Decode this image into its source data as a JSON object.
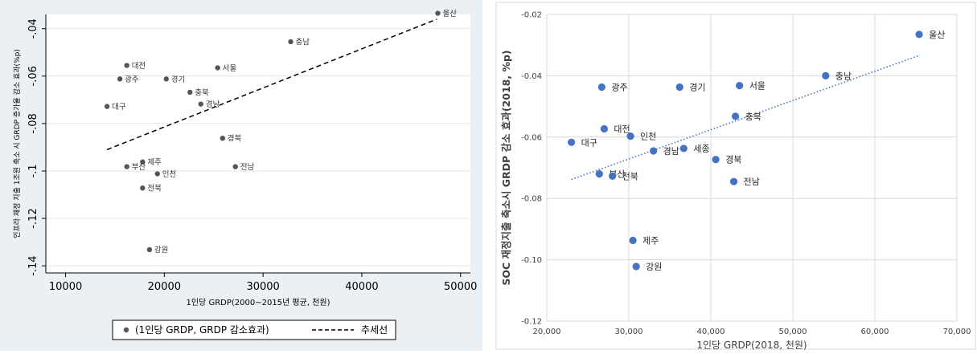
{
  "chart_data": [
    {
      "type": "scatter",
      "panel": "left",
      "xlabel": "1인당 GRDP(2000~2015년 평균, 천원)",
      "ylabel": "인프라 재정 지출 1조원 축소 시 GRDP 증가율 감소 효과(%p)",
      "xlim": [
        8000,
        51000
      ],
      "ylim": [
        -0.143,
        -0.034
      ],
      "xticks": [
        10000,
        20000,
        30000,
        40000,
        50000
      ],
      "yticks": [
        -0.04,
        -0.06,
        -0.08,
        -0.1,
        -0.12,
        -0.14
      ],
      "ytick_labels": [
        "-.04",
        "-.06",
        "-.08",
        "-.1",
        "-.12",
        "-.14"
      ],
      "grid": true,
      "legend": {
        "position": "bottom",
        "items": [
          "(1인당 GRDP, GRDP 감소효과)",
          "추세선"
        ]
      },
      "marker_color": "#555555",
      "trend": {
        "label": "추세선",
        "style": "dashed",
        "x": [
          14200,
          47600
        ],
        "y": [
          -0.091,
          -0.036
        ]
      },
      "points": [
        {
          "label": "울산",
          "x": 47700,
          "y": -0.0335
        },
        {
          "label": "충남",
          "x": 32800,
          "y": -0.0455
        },
        {
          "label": "대전",
          "x": 16200,
          "y": -0.0555
        },
        {
          "label": "광주",
          "x": 15500,
          "y": -0.0612
        },
        {
          "label": "경기",
          "x": 20200,
          "y": -0.0612
        },
        {
          "label": "서울",
          "x": 25400,
          "y": -0.0565
        },
        {
          "label": "충북",
          "x": 22600,
          "y": -0.0668
        },
        {
          "label": "경남",
          "x": 23700,
          "y": -0.0718
        },
        {
          "label": "대구",
          "x": 14200,
          "y": -0.0728
        },
        {
          "label": "경북",
          "x": 25900,
          "y": -0.0862
        },
        {
          "label": "제주",
          "x": 17800,
          "y": -0.0962
        },
        {
          "label": "부산",
          "x": 16200,
          "y": -0.0982
        },
        {
          "label": "인천",
          "x": 19300,
          "y": -0.1012
        },
        {
          "label": "전남",
          "x": 27200,
          "y": -0.0982
        },
        {
          "label": "전북",
          "x": 17800,
          "y": -0.1072
        },
        {
          "label": "강원",
          "x": 18500,
          "y": -0.1332
        }
      ]
    },
    {
      "type": "scatter",
      "panel": "right",
      "xlabel": "1인당 GRDP(2018, 천원)",
      "ylabel": "SOC 재정지출 축소시 GRDP 감소 효과(2018, %p)",
      "xlim": [
        20000,
        70000
      ],
      "ylim": [
        -0.12,
        -0.02
      ],
      "xticks": [
        20000,
        30000,
        40000,
        50000,
        60000,
        70000
      ],
      "xtick_labels": [
        "20,000",
        "30,000",
        "40,000",
        "50,000",
        "60,000",
        "70,000"
      ],
      "yticks": [
        -0.02,
        -0.04,
        -0.06,
        -0.08,
        -0.1,
        -0.12
      ],
      "ytick_labels": [
        "-0.02",
        "-0.04",
        "-0.06",
        "-0.08",
        "-0.10",
        "-0.12"
      ],
      "grid": true,
      "marker_color": "#4472c4",
      "trend": {
        "style": "dotted",
        "color": "#4472c4",
        "x": [
          23000,
          65500
        ],
        "y": [
          -0.0738,
          -0.0333
        ]
      },
      "points": [
        {
          "label": "울산",
          "x": 65400,
          "y": -0.0265
        },
        {
          "label": "충남",
          "x": 54000,
          "y": -0.04
        },
        {
          "label": "광주",
          "x": 26700,
          "y": -0.0437
        },
        {
          "label": "경기",
          "x": 36200,
          "y": -0.0437
        },
        {
          "label": "서울",
          "x": 43500,
          "y": -0.0432
        },
        {
          "label": "충북",
          "x": 43000,
          "y": -0.0532
        },
        {
          "label": "대전",
          "x": 27000,
          "y": -0.0573
        },
        {
          "label": "인천",
          "x": 30200,
          "y": -0.0597
        },
        {
          "label": "대구",
          "x": 23000,
          "y": -0.0617
        },
        {
          "label": "경남",
          "x": 33000,
          "y": -0.0645
        },
        {
          "label": "세종",
          "x": 36700,
          "y": -0.0637
        },
        {
          "label": "경북",
          "x": 40600,
          "y": -0.0673
        },
        {
          "label": "부산",
          "x": 26400,
          "y": -0.072
        },
        {
          "label": "전북",
          "x": 28000,
          "y": -0.0727
        },
        {
          "label": "전남",
          "x": 42800,
          "y": -0.0745
        },
        {
          "label": "제주",
          "x": 30500,
          "y": -0.0937
        },
        {
          "label": "강원",
          "x": 30900,
          "y": -0.1022
        }
      ]
    }
  ]
}
